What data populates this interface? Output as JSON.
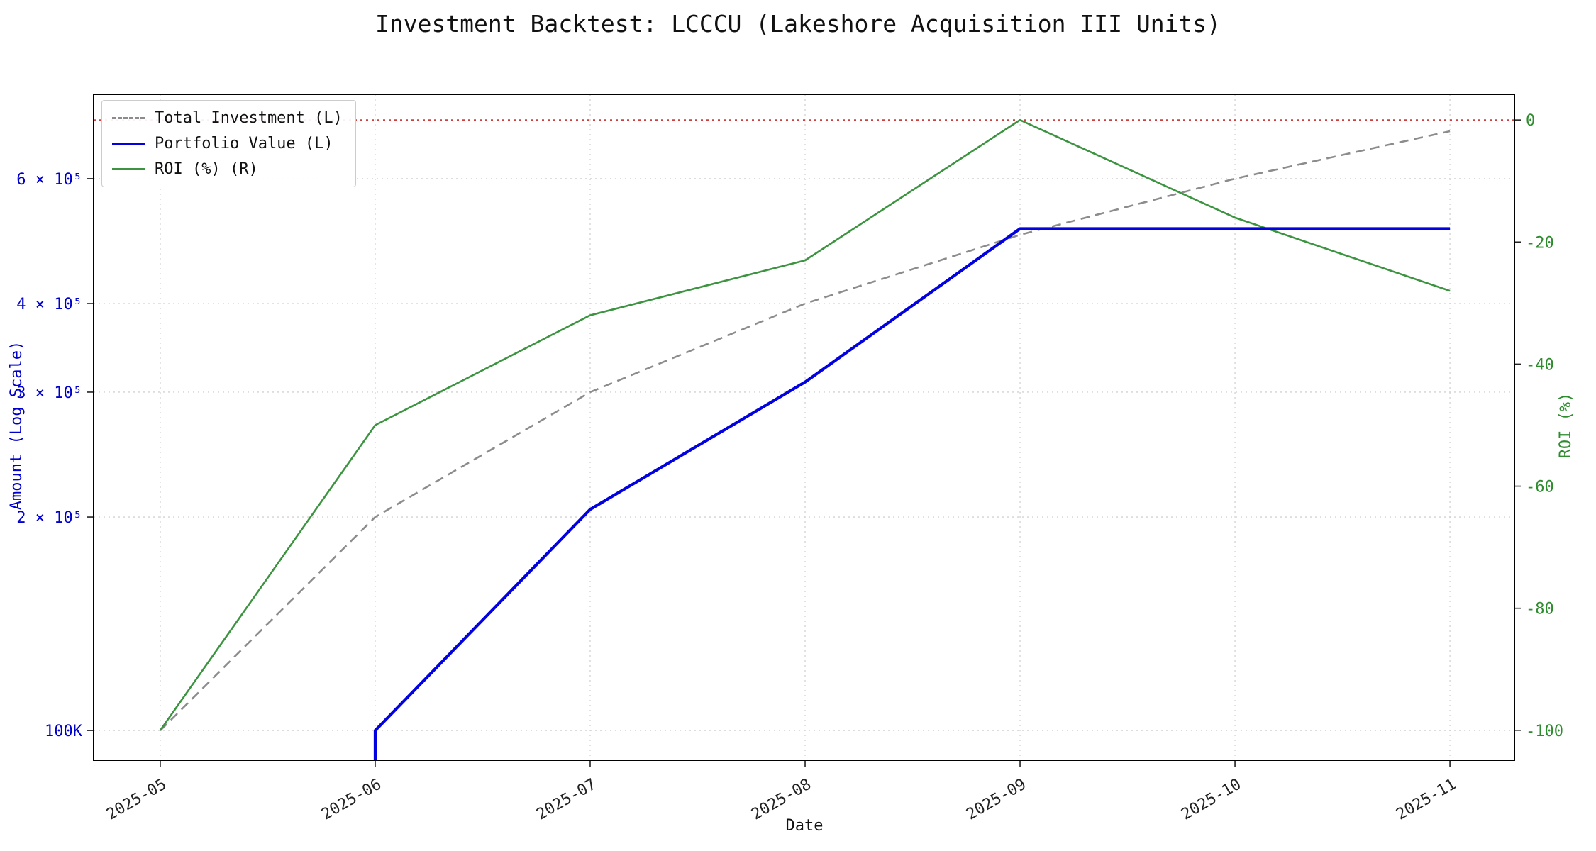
{
  "chart_data": {
    "type": "line",
    "title": "Investment Backtest: LCCCU (Lakeshore Acquisition III Units)",
    "xlabel": "Date",
    "ylabel_left": "Amount (Log Scale)",
    "ylabel_right": "ROI (%)",
    "x_categories": [
      "2025-05",
      "2025-06",
      "2025-07",
      "2025-08",
      "2025-09",
      "2025-10",
      "2025-11"
    ],
    "x_axis": {
      "index_range": [
        -0.31,
        6.3
      ],
      "tick_rotation_deg": 30
    },
    "left_axis": {
      "scale": "log",
      "color": "#0000cc",
      "range": [
        90800,
        789000
      ],
      "ticks": [
        {
          "value": 600000,
          "label": "6 × 10⁵"
        },
        {
          "value": 400000,
          "label": "4 × 10⁵"
        },
        {
          "value": 300000,
          "label": "3 × 10⁵"
        },
        {
          "value": 200000,
          "label": "2 × 10⁵"
        },
        {
          "value": 100000,
          "label": "100K"
        }
      ]
    },
    "right_axis": {
      "scale": "linear",
      "color": "#2e8b2e",
      "range": [
        -104.9,
        4.2
      ],
      "ticks": [
        {
          "value": 0,
          "label": "0"
        },
        {
          "value": -20,
          "label": "-20"
        },
        {
          "value": -40,
          "label": "-40"
        },
        {
          "value": -60,
          "label": "-60"
        },
        {
          "value": -80,
          "label": "-80"
        },
        {
          "value": -100,
          "label": "-100"
        }
      ]
    },
    "grid": true,
    "legend_position": "upper left",
    "series": [
      {
        "name": "Total Investment (L)",
        "axis": "left",
        "color": "#8c8c8c",
        "dash": "dashed",
        "width": 2.6,
        "values": [
          100000,
          200000,
          300000,
          400000,
          500000,
          600000,
          700000
        ]
      },
      {
        "name": "Portfolio Value (L)",
        "axis": "left",
        "color": "#0202e0",
        "dash": "solid",
        "width": 4.2,
        "values": [
          null,
          100000,
          205000,
          310000,
          510000,
          510000,
          510000
        ]
      },
      {
        "name": "ROI (%) (R)",
        "axis": "right",
        "color": "#3c9440",
        "dash": "solid",
        "width": 2.6,
        "values": [
          -100,
          -50,
          -32,
          -23,
          0,
          -16,
          -28
        ]
      }
    ],
    "reference_line": {
      "axis": "right",
      "value": 0,
      "color": "#cc4040",
      "style": "dotted"
    }
  }
}
